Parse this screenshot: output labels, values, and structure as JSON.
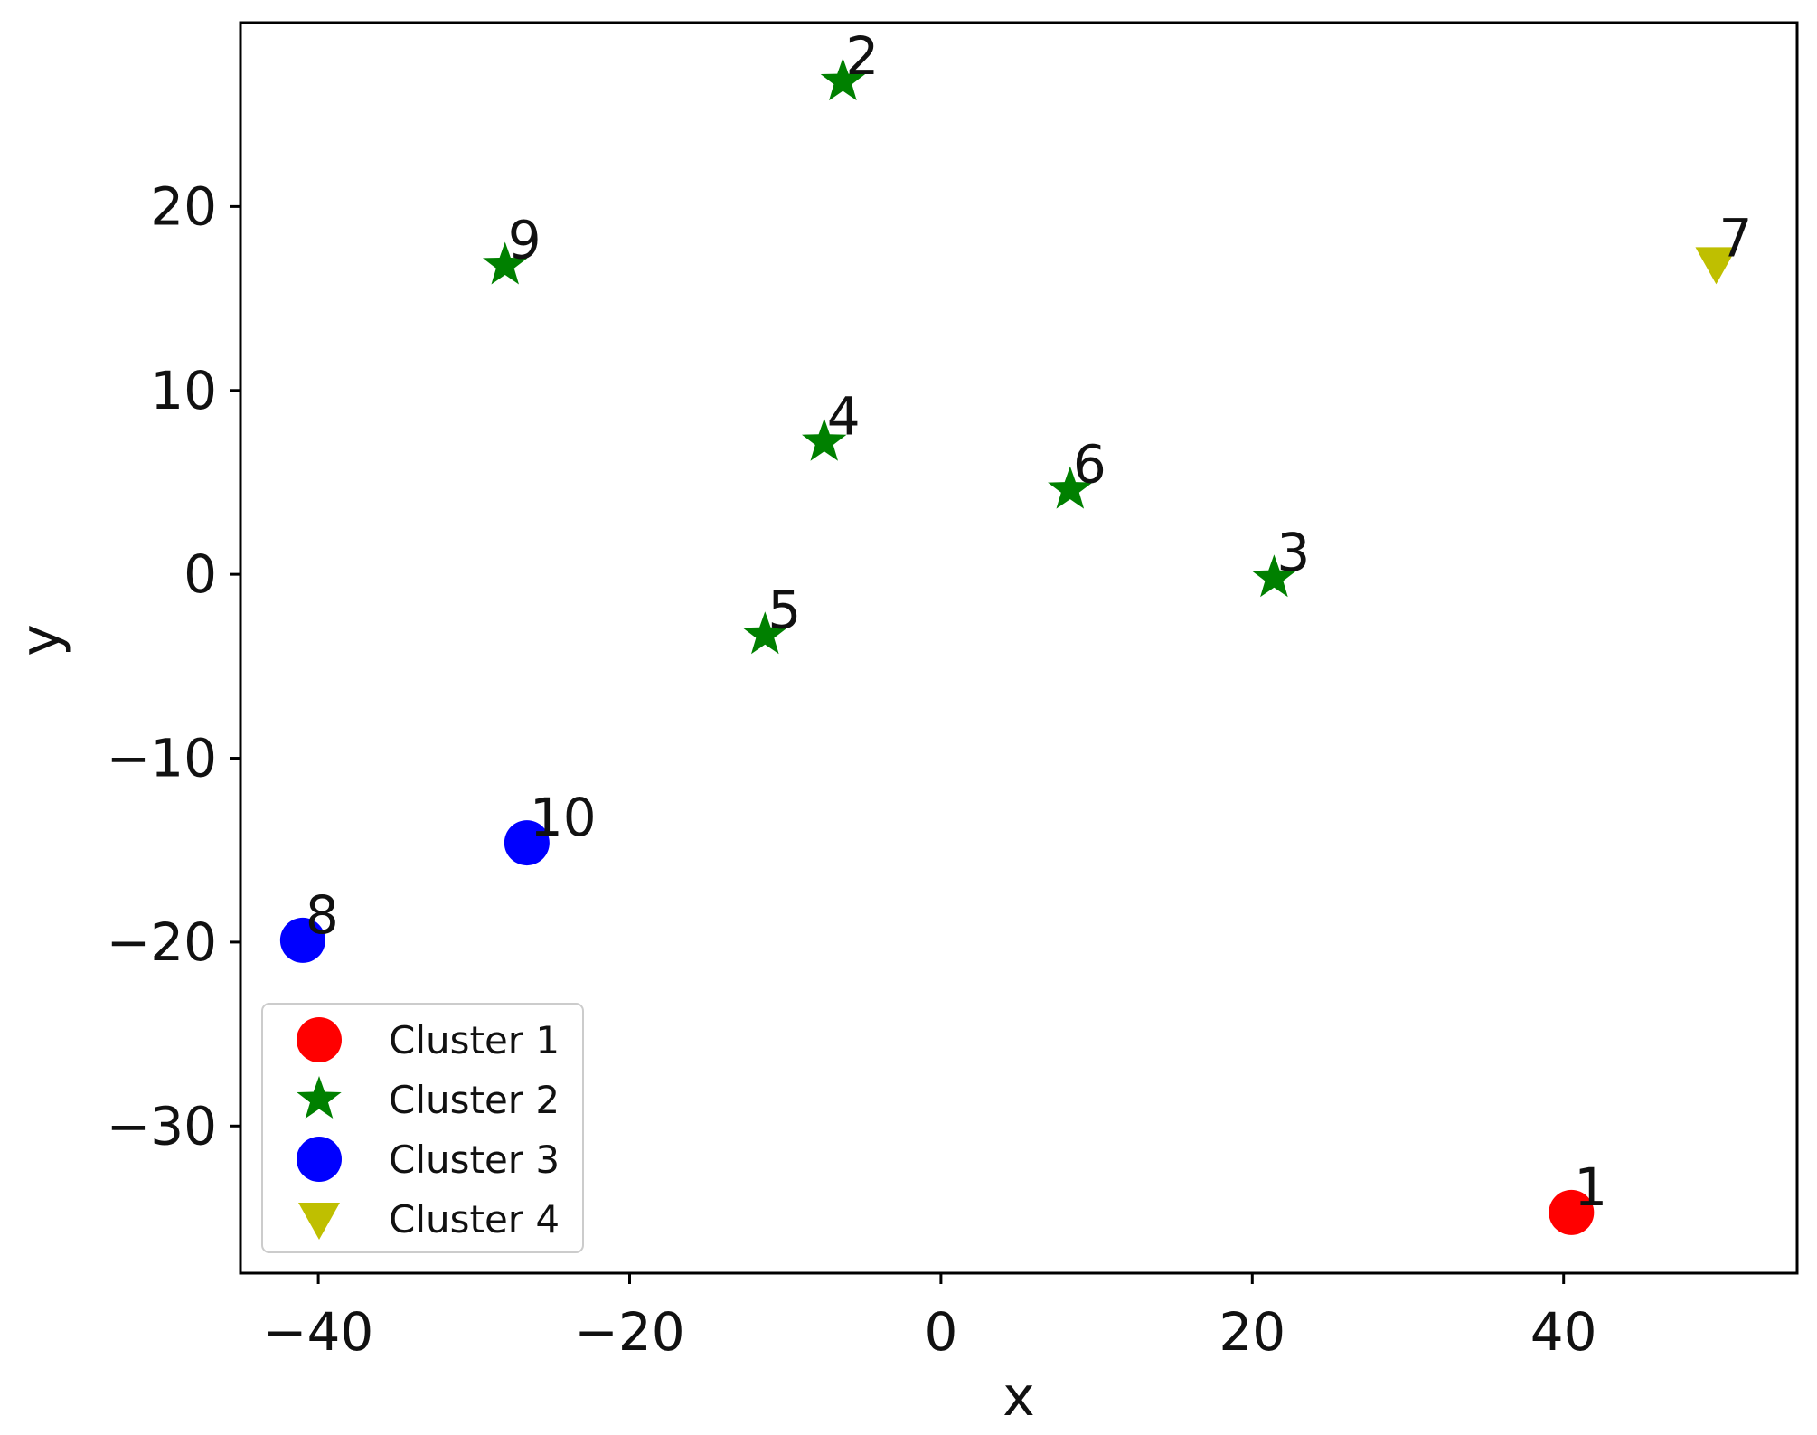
{
  "chart_data": {
    "type": "scatter",
    "title": "",
    "xlabel": "x",
    "ylabel": "y",
    "xlim": [
      -45,
      55
    ],
    "ylim": [
      -38,
      30
    ],
    "xticks": [
      -40,
      -20,
      0,
      20,
      40
    ],
    "yticks": [
      -30,
      -20,
      -10,
      0,
      10,
      20
    ],
    "grid": false,
    "legend_position": "lower-left",
    "series": [
      {
        "name": "Cluster 1",
        "color": "#ff0000",
        "marker": "circle",
        "points": [
          {
            "label": "1",
            "x": 40.5,
            "y": -34.7
          }
        ]
      },
      {
        "name": "Cluster 2",
        "color": "#008000",
        "marker": "star",
        "points": [
          {
            "label": "2",
            "x": -6.3,
            "y": 26.8
          },
          {
            "label": "3",
            "x": 21.4,
            "y": -0.2
          },
          {
            "label": "4",
            "x": -7.5,
            "y": 7.2
          },
          {
            "label": "5",
            "x": -11.3,
            "y": -3.3
          },
          {
            "label": "6",
            "x": 8.3,
            "y": 4.6
          },
          {
            "label": "9",
            "x": -28.0,
            "y": 16.8
          }
        ]
      },
      {
        "name": "Cluster 3",
        "color": "#0000ff",
        "marker": "circle",
        "points": [
          {
            "label": "8",
            "x": -41.0,
            "y": -19.9
          },
          {
            "label": "10",
            "x": -26.6,
            "y": -14.6
          }
        ]
      },
      {
        "name": "Cluster 4",
        "color": "#bfbf00",
        "marker": "triangle-down",
        "points": [
          {
            "label": "7",
            "x": 49.8,
            "y": 16.9
          }
        ]
      }
    ]
  }
}
